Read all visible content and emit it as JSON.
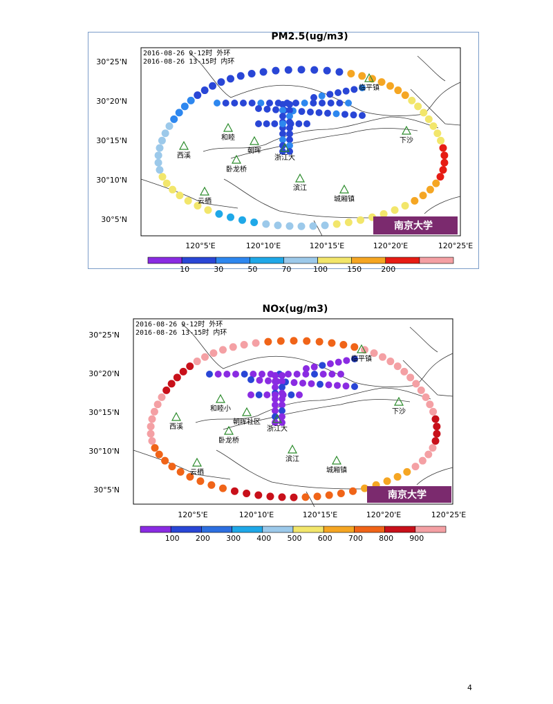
{
  "page_number": "4",
  "maps": [
    {
      "id": "pm25",
      "title": "PM2.5(ug/m3)",
      "info_lines": [
        "2016-08-26 9-12时 外环",
        "2016-08-26 13-15时 内环"
      ],
      "lat_labels": [
        "30°25'N",
        "30°20'N",
        "30°15'N",
        "30°10'N",
        "30°5'N"
      ],
      "lon_labels": [
        "120°5'E",
        "120°10'E",
        "120°15'E",
        "120°20'E",
        "120°25'E"
      ],
      "places": [
        "临平镇",
        "下沙",
        "西溪",
        "和睦",
        "朝晖",
        "浙江大",
        "卧龙桥",
        "滨江",
        "城厢镇",
        "云栖"
      ],
      "logo_text": "南京大学",
      "legend": {
        "ticks": [
          "10",
          "30",
          "50",
          "70",
          "100",
          "150",
          "200"
        ],
        "colors": [
          "#8a2be2",
          "#2946d6",
          "#2d87ef",
          "#1fa8e8",
          "#9cc9ea",
          "#f2e66b",
          "#f5a623",
          "#e61c14",
          "#f4a0a4"
        ]
      }
    },
    {
      "id": "nox",
      "title": "NOx(ug/m3)",
      "info_lines": [
        "2016-08-26 9-12时 外环",
        "2016-08-26 13-15时 内环"
      ],
      "lat_labels": [
        "30°25'N",
        "30°20'N",
        "30°15'N",
        "30°10'N",
        "30°5'N"
      ],
      "lon_labels": [
        "120°5'E",
        "120°10'E",
        "120°15'E",
        "120°20'E",
        "120°25'E"
      ],
      "places": [
        "临平镇",
        "下沙",
        "西溪",
        "和睦小",
        "朝晖社区",
        "浙江大",
        "卧龙桥",
        "滨江",
        "城厢镇",
        "云栖"
      ],
      "logo_text": "南京大学",
      "legend": {
        "ticks": [
          "100",
          "200",
          "300",
          "400",
          "500",
          "600",
          "700",
          "800",
          "900"
        ],
        "colors": [
          "#8a2be2",
          "#2946d6",
          "#2d6fe0",
          "#1fa8e8",
          "#9cc9ea",
          "#f2e66b",
          "#f5a623",
          "#f06418",
          "#c8101a",
          "#f4a0a4"
        ]
      }
    }
  ]
}
